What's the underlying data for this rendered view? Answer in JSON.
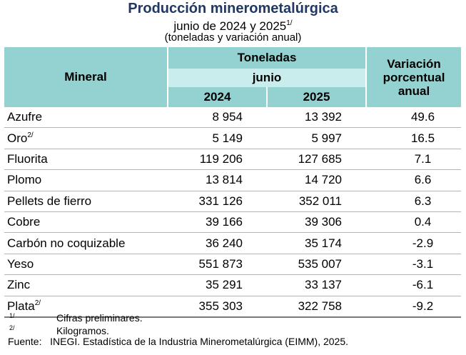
{
  "title": "Producción minerometalúrgica",
  "subtitle": {
    "text": "junio de 2024 y 2025",
    "sup": "1/"
  },
  "units": "(toneladas y variación anual)",
  "table": {
    "header": {
      "mineral": "Mineral",
      "toneladas": "Toneladas",
      "period": "junio",
      "year1": "2024",
      "year2": "2025",
      "variacion": [
        "Variación",
        "porcentual",
        "anual"
      ]
    },
    "rows": [
      {
        "name": "Azufre",
        "sup": "",
        "v2024": "8 954",
        "v2025": "13 392",
        "var": "49.6"
      },
      {
        "name": "Oro",
        "sup": "2/",
        "v2024": "5 149",
        "v2025": "5 997",
        "var": "16.5"
      },
      {
        "name": "Fluorita",
        "sup": "",
        "v2024": "119 206",
        "v2025": "127 685",
        "var": "7.1"
      },
      {
        "name": "Plomo",
        "sup": "",
        "v2024": "13 814",
        "v2025": "14 720",
        "var": "6.6"
      },
      {
        "name": "Pellets de fierro",
        "sup": "",
        "v2024": "331 126",
        "v2025": "352 011",
        "var": "6.3"
      },
      {
        "name": "Cobre",
        "sup": "",
        "v2024": "39 166",
        "v2025": "39 306",
        "var": "0.4"
      },
      {
        "name": "Carbón no coquizable",
        "sup": "",
        "v2024": "36 240",
        "v2025": "35 174",
        "var": "-2.9"
      },
      {
        "name": "Yeso",
        "sup": "",
        "v2024": "551 873",
        "v2025": "535 007",
        "var": "-3.1"
      },
      {
        "name": "Zinc",
        "sup": "",
        "v2024": "35 291",
        "v2025": "33 137",
        "var": "-6.1"
      },
      {
        "name": "Plata",
        "sup": "2/",
        "v2024": "355 303",
        "v2025": "322 758",
        "var": "-9.2"
      }
    ]
  },
  "notes": [
    {
      "mark": "1/",
      "text": "Cifras preliminares."
    },
    {
      "mark": "2/",
      "text": "Kilogramos."
    }
  ],
  "source": {
    "label": "Fuente:",
    "org": "INEGI",
    "text": ". Estadística de la Industria Minerometalúrgica (",
    "abbr": "EIMM",
    "tail": "), 2025."
  },
  "colors": {
    "header_bg": "#94d2d2",
    "subheader_bg": "#c9ecec",
    "title": "#1f3864"
  }
}
